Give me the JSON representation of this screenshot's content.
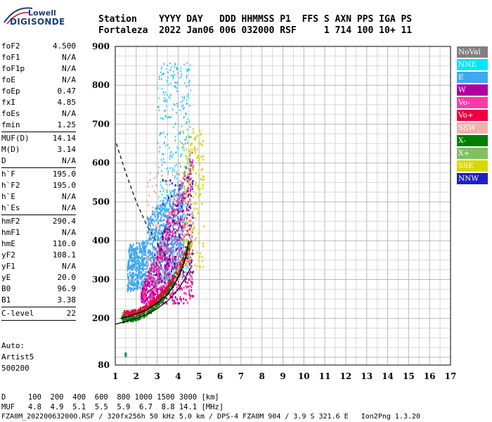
{
  "logo": {
    "line1": "Lowell",
    "line2": "DIGISONDE"
  },
  "header": {
    "line1": "Station    YYYY DAY   DDD HHMMSS P1  FFS S AXN PPS IGA PS",
    "line2": "Fortaleza  2022 Jan06 006 032000 RSF     1 714 100 10+ 11"
  },
  "params": {
    "group1": [
      {
        "name": "foF2",
        "value": "4.500"
      },
      {
        "name": "foF1",
        "value": "N/A"
      },
      {
        "name": "foF1p",
        "value": "N/A"
      },
      {
        "name": "foE",
        "value": "N/A"
      },
      {
        "name": "foEp",
        "value": "0.47"
      },
      {
        "name": "fxI",
        "value": "4.85"
      },
      {
        "name": "foEs",
        "value": "N/A"
      },
      {
        "name": "fmin",
        "value": "1.25"
      }
    ],
    "group2": [
      {
        "name": "MUF(D)",
        "value": "14.14"
      },
      {
        "name": "M(D)",
        "value": "3.14"
      },
      {
        "name": "D",
        "value": "N/A"
      }
    ],
    "group3": [
      {
        "name": "h`F",
        "value": "195.0"
      },
      {
        "name": "h`F2",
        "value": "195.0"
      },
      {
        "name": "h`E",
        "value": "N/A"
      },
      {
        "name": "h`Es",
        "value": "N/A"
      }
    ],
    "group4": [
      {
        "name": "hmF2",
        "value": "290.4"
      },
      {
        "name": "hmF1",
        "value": "N/A"
      },
      {
        "name": "hmE",
        "value": "110.0"
      },
      {
        "name": "yF2",
        "value": "108.1"
      },
      {
        "name": "yF1",
        "value": "N/A"
      },
      {
        "name": "yE",
        "value": "20.0"
      },
      {
        "name": "B0",
        "value": "96.9"
      },
      {
        "name": "B1",
        "value": "3.38"
      }
    ],
    "group5": [
      {
        "name": "C-level",
        "value": "22"
      }
    ]
  },
  "auto": {
    "line1": "Auto:",
    "line2": "Artist5",
    "line3": "500200"
  },
  "legend": [
    {
      "label": "NoVal",
      "color": "#808080"
    },
    {
      "label": "NNE",
      "color": "#00e5ff"
    },
    {
      "label": "E",
      "color": "#40a8f0"
    },
    {
      "label": "W",
      "color": "#b0009e"
    },
    {
      "label": "Vo-",
      "color": "#ff3aa6"
    },
    {
      "label": "Vo+",
      "color": "#ee0040"
    },
    {
      "label": "SSW",
      "color": "#f4b0b0"
    },
    {
      "label": "X-",
      "color": "#008000"
    },
    {
      "label": "X+",
      "color": "#80c060"
    },
    {
      "label": "SSE",
      "color": "#d8d800"
    },
    {
      "label": "NNW",
      "color": "#2020c0"
    }
  ],
  "chart_data": {
    "type": "scatter",
    "xlim": [
      1,
      17
    ],
    "ylim": [
      80,
      900
    ],
    "x_ticks": [
      1,
      2,
      3,
      4,
      5,
      6,
      7,
      8,
      9,
      10,
      11,
      12,
      13,
      14,
      15,
      16,
      17
    ],
    "y_ticks": [
      80,
      200,
      300,
      400,
      500,
      600,
      700,
      800,
      900
    ],
    "grid": true,
    "legend_position": "right",
    "profile_curve": {
      "x": [
        1.0,
        1.5,
        2.0,
        2.5,
        3.0,
        3.5,
        4.0,
        4.3,
        4.5,
        4.6
      ],
      "y": [
        185,
        192,
        200,
        210,
        225,
        245,
        275,
        300,
        320,
        330
      ]
    },
    "dashed_curve": {
      "x": [
        1.05,
        1.5,
        2.0,
        2.5,
        3.0,
        3.4
      ],
      "y": [
        650,
        575,
        500,
        440,
        395,
        360
      ]
    },
    "trace_curve": {
      "x": [
        1.25,
        1.6,
        2.0,
        2.5,
        3.0,
        3.5,
        3.8,
        4.0,
        4.2,
        4.35,
        4.45,
        4.5
      ],
      "y": [
        200,
        205,
        212,
        222,
        240,
        262,
        285,
        305,
        330,
        355,
        380,
        400
      ]
    },
    "clusters": [
      {
        "name": "E",
        "x_range": [
          1.5,
          4.5
        ],
        "y_range": [
          260,
          480
        ]
      },
      {
        "name": "W",
        "x_range": [
          2.0,
          4.8
        ],
        "y_range": [
          220,
          620
        ]
      },
      {
        "name": "Vo-",
        "x_range": [
          2.2,
          4.7
        ],
        "y_range": [
          240,
          620
        ]
      },
      {
        "name": "X-",
        "x_range": [
          1.3,
          4.6
        ],
        "y_range": [
          200,
          480
        ]
      },
      {
        "name": "NNE",
        "x_range": [
          3.0,
          4.6
        ],
        "y_range": [
          280,
          880
        ]
      },
      {
        "name": "SSE",
        "x_range": [
          4.2,
          5.2
        ],
        "y_range": [
          330,
          700
        ]
      }
    ]
  },
  "footer": {
    "line1": "D     100  200  400  600  800 1000 1500 3000 [km]",
    "line2": "MUF   4.8  4.9  5.1  5.5  5.9  6.7  8.8 14.1 [MHz]",
    "line3": "FZA0M_20220063200O.RSF / 320fx256h 50 kHz 5.0 km / DPS-4 FZA0M 904 / 3.9 S 321.6 E   Ion2Png 1.3.20"
  }
}
